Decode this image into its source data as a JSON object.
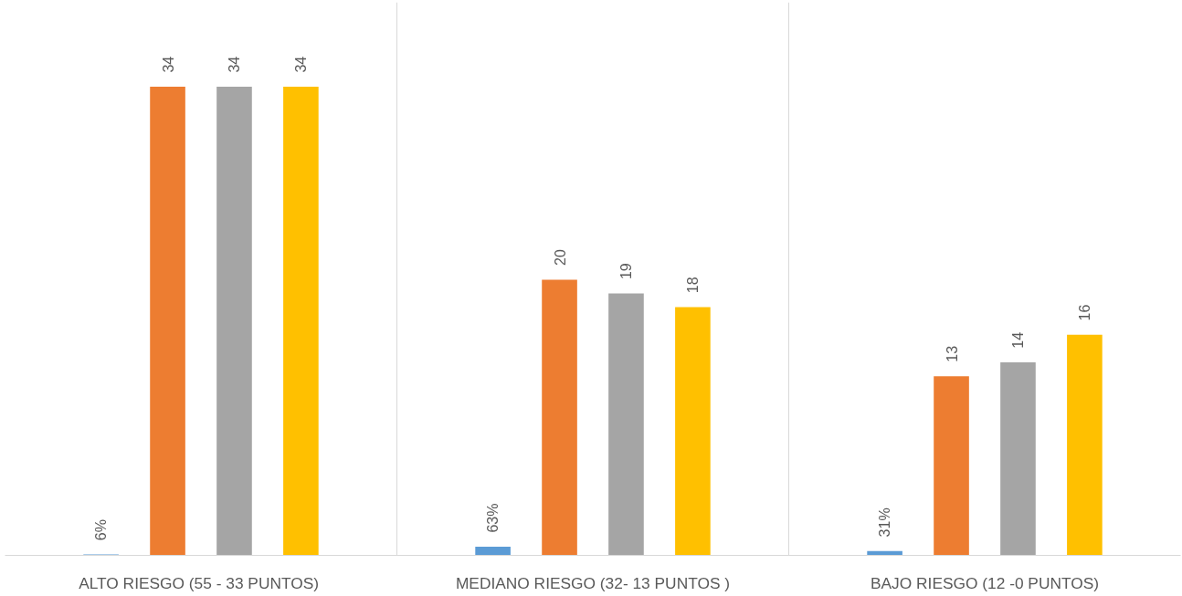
{
  "chart_data": {
    "type": "bar",
    "categories": [
      "ALTO RIESGO (55 -  33 PUNTOS)",
      "MEDIANO RIESGO (32- 13 PUNTOS )",
      "BAJO RIESGO (12 -0 PUNTOS)"
    ],
    "series": [
      {
        "color": "#5b9bd5",
        "values": [
          0.06,
          0.63,
          0.31
        ],
        "value_labels": [
          "6%",
          "63%",
          "31%"
        ]
      },
      {
        "color": "#ed7d31",
        "values": [
          34,
          20,
          13
        ]
      },
      {
        "color": "#a5a5a5",
        "values": [
          34,
          19,
          14
        ]
      },
      {
        "color": "#ffc000",
        "values": [
          34,
          18,
          16
        ]
      }
    ],
    "data_labels": true,
    "grid": "x"
  }
}
